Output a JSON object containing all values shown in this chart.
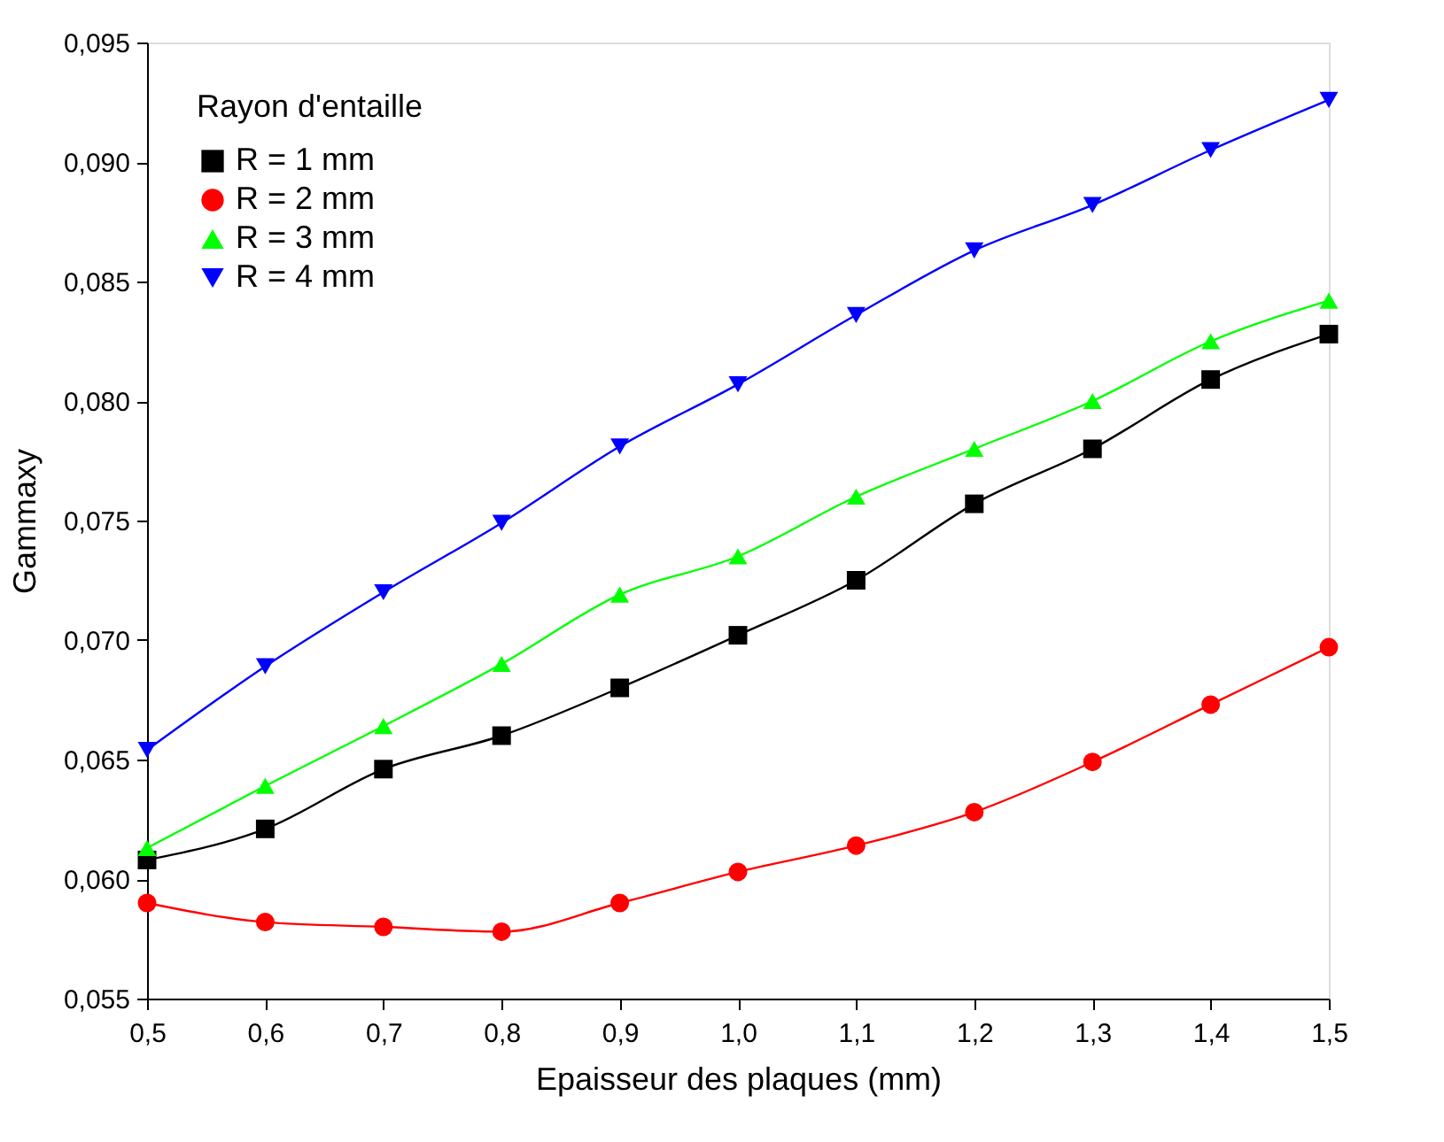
{
  "chart_data": {
    "type": "line",
    "xlabel": "Epaisseur des plaques (mm)",
    "ylabel": "Gammaxy",
    "legend_title": "Rayon d'entaille",
    "legend": "top left",
    "grid": false,
    "x": [
      0.5,
      0.6,
      0.7,
      0.8,
      0.9,
      1.0,
      1.1,
      1.2,
      1.3,
      1.4,
      1.5
    ],
    "series": [
      {
        "name": "R = 1 mm",
        "color": "#000000",
        "marker": "square",
        "values": [
          0.0608,
          0.0621,
          0.0646,
          0.066,
          0.068,
          0.0702,
          0.0725,
          0.0757,
          0.078,
          0.0809,
          0.0828
        ]
      },
      {
        "name": "R = 2 mm",
        "color": "#ff0000",
        "marker": "circle",
        "values": [
          0.059,
          0.0582,
          0.058,
          0.0578,
          0.059,
          0.0603,
          0.0614,
          0.0628,
          0.0649,
          0.0673,
          0.0697
        ]
      },
      {
        "name": "R = 3 mm",
        "color": "#00ff00",
        "marker": "triangle",
        "values": [
          0.0613,
          0.0639,
          0.0664,
          0.069,
          0.0719,
          0.0735,
          0.076,
          0.078,
          0.08,
          0.0825,
          0.0842
        ]
      },
      {
        "name": "R = 4 mm",
        "color": "#0000ff",
        "marker": "triangle-down",
        "values": [
          0.0654,
          0.0689,
          0.072,
          0.0749,
          0.0781,
          0.0807,
          0.0836,
          0.0863,
          0.0882,
          0.0905,
          0.0926
        ]
      }
    ],
    "xlim": [
      0.5,
      1.5
    ],
    "xticks": [
      {
        "value": 0.5,
        "label": "0,5"
      },
      {
        "value": 0.6,
        "label": "0,6"
      },
      {
        "value": 0.7,
        "label": "0,7"
      },
      {
        "value": 0.8,
        "label": "0,8"
      },
      {
        "value": 0.9,
        "label": "0,9"
      },
      {
        "value": 1.0,
        "label": "1,0"
      },
      {
        "value": 1.1,
        "label": "1,1"
      },
      {
        "value": 1.2,
        "label": "1,2"
      },
      {
        "value": 1.3,
        "label": "1,3"
      },
      {
        "value": 1.4,
        "label": "1,4"
      },
      {
        "value": 1.5,
        "label": "1,5"
      }
    ],
    "ylim": [
      0.055,
      0.095
    ],
    "yticks": [
      {
        "value": 0.055,
        "label": "0,055"
      },
      {
        "value": 0.06,
        "label": "0,060"
      },
      {
        "value": 0.065,
        "label": "0,065"
      },
      {
        "value": 0.07,
        "label": "0,070"
      },
      {
        "value": 0.075,
        "label": "0,075"
      },
      {
        "value": 0.08,
        "label": "0,080"
      },
      {
        "value": 0.085,
        "label": "0,085"
      },
      {
        "value": 0.09,
        "label": "0,090"
      },
      {
        "value": 0.095,
        "label": "0,095"
      }
    ]
  }
}
